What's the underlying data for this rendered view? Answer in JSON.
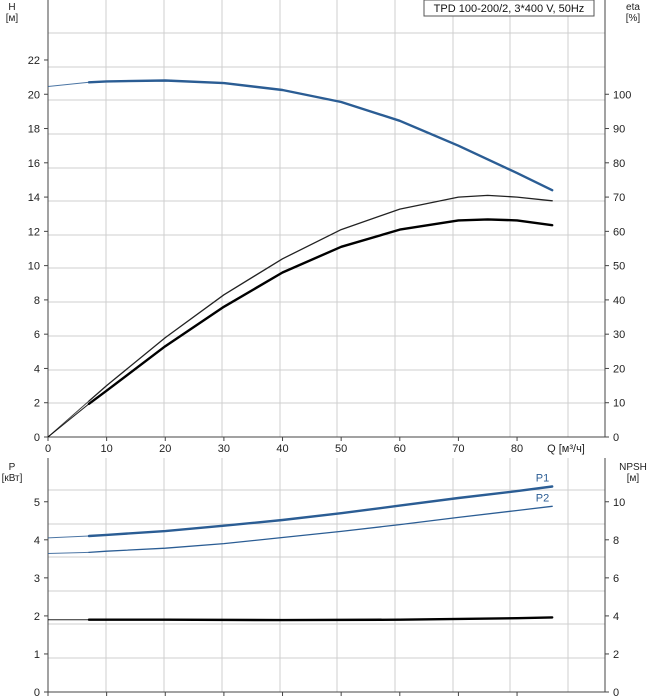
{
  "chart_data": [
    {
      "type": "line",
      "title": "TPD 100-200/2, 3*400 V, 50Hz",
      "xlabel": "Q [м³/ч]",
      "ylabel_left": "H",
      "ylabel_left_unit": "[м]",
      "ylabel_right": "eta",
      "ylabel_right_unit": "[%]",
      "xlim": [
        0,
        95
      ],
      "ylim_left": [
        0,
        25.5
      ],
      "ylim_right": [
        0,
        127.5
      ],
      "x_ticks": [
        0,
        10,
        20,
        30,
        40,
        50,
        60,
        70,
        80
      ],
      "y_left_ticks": [
        0,
        2,
        4,
        6,
        8,
        10,
        12,
        14,
        16,
        18,
        20,
        22
      ],
      "y_right_ticks": [
        0,
        10,
        20,
        30,
        40,
        50,
        60,
        70,
        80,
        90,
        100
      ],
      "grid": true,
      "series": [
        {
          "axis": "left",
          "color": "#2b5d94",
          "points": [
            [
              0,
              20.45
            ],
            [
              7,
              20.7
            ],
            [
              10,
              20.75
            ],
            [
              20,
              20.8
            ],
            [
              30,
              20.65
            ],
            [
              40,
              20.25
            ],
            [
              50,
              19.55
            ],
            [
              60,
              18.45
            ],
            [
              70,
              17.0
            ],
            [
              80,
              15.4
            ],
            [
              86,
              14.4
            ]
          ]
        },
        {
          "axis": "right",
          "color": "#222222",
          "points": [
            [
              0,
              0
            ],
            [
              7,
              10.5
            ],
            [
              10,
              15
            ],
            [
              20,
              29
            ],
            [
              30,
              41.5
            ],
            [
              40,
              52
            ],
            [
              50,
              60.5
            ],
            [
              60,
              66.5
            ],
            [
              70,
              70
            ],
            [
              75,
              70.5
            ],
            [
              80,
              70
            ],
            [
              86,
              68.9
            ]
          ]
        },
        {
          "axis": "right",
          "color": "#000000",
          "points": [
            [
              0,
              0
            ],
            [
              7,
              9.7
            ],
            [
              10,
              13.5
            ],
            [
              20,
              26.5
            ],
            [
              30,
              38
            ],
            [
              40,
              48
            ],
            [
              50,
              55.5
            ],
            [
              60,
              60.5
            ],
            [
              70,
              63.2
            ],
            [
              75,
              63.5
            ],
            [
              80,
              63.2
            ],
            [
              86,
              61.8
            ]
          ]
        }
      ]
    },
    {
      "type": "line",
      "ylabel_left": "P",
      "ylabel_left_unit": "[кВт]",
      "ylabel_right": "NPSH",
      "ylabel_right_unit": "[м]",
      "xlim": [
        0,
        95
      ],
      "ylim_left": [
        0,
        6.15
      ],
      "ylim_right": [
        0,
        12.3
      ],
      "y_left_ticks": [
        0,
        1,
        2,
        3,
        4,
        5
      ],
      "y_right_ticks": [
        0,
        2,
        4,
        6,
        8,
        10
      ],
      "grid": true,
      "series": [
        {
          "name": "P1",
          "axis": "left",
          "color": "#2b5d94",
          "points": [
            [
              0,
              4.05
            ],
            [
              7,
              4.1
            ],
            [
              10,
              4.13
            ],
            [
              20,
              4.23
            ],
            [
              30,
              4.37
            ],
            [
              40,
              4.52
            ],
            [
              50,
              4.7
            ],
            [
              60,
              4.9
            ],
            [
              70,
              5.1
            ],
            [
              80,
              5.28
            ],
            [
              86,
              5.4
            ]
          ]
        },
        {
          "name": "P2",
          "axis": "left",
          "color": "#2b5d94",
          "points": [
            [
              0,
              3.64
            ],
            [
              7,
              3.67
            ],
            [
              10,
              3.7
            ],
            [
              20,
              3.78
            ],
            [
              30,
              3.9
            ],
            [
              40,
              4.06
            ],
            [
              50,
              4.22
            ],
            [
              60,
              4.4
            ],
            [
              70,
              4.59
            ],
            [
              80,
              4.77
            ],
            [
              86,
              4.88
            ]
          ]
        },
        {
          "axis": "right",
          "color": "#000000",
          "points": [
            [
              0,
              3.8
            ],
            [
              7,
              3.8
            ],
            [
              20,
              3.8
            ],
            [
              40,
              3.78
            ],
            [
              60,
              3.8
            ],
            [
              80,
              3.88
            ],
            [
              86,
              3.92
            ]
          ]
        }
      ]
    }
  ]
}
